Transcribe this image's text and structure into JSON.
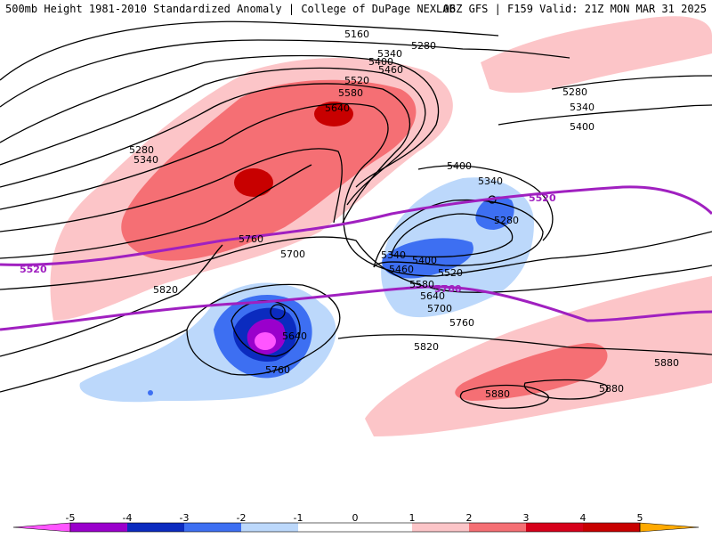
{
  "header": {
    "left_title": "500mb Height 1981-2010 Standardized Anomaly | College of DuPage NEXLAB",
    "right_title": "06Z GFS | F159 Valid: 21Z MON MAR 31 2025"
  },
  "colors": {
    "neg5": "#ff55ff",
    "neg4": "#9a00cc",
    "neg3": "#0b2bbf",
    "neg2": "#3d6ff2",
    "neg1": "#bcd8fb",
    "pos1": "#fcc5c8",
    "pos2": "#f56f74",
    "pos3": "#d6001a",
    "pos4": "#c80000",
    "pos5": "#ffaa00",
    "thick_line": "#a020c0"
  },
  "contours": {
    "c5160": "5160",
    "c5280": "5280",
    "c5340": "5340",
    "c5400": "5400",
    "c5460": "5460",
    "c5520": "5520",
    "c5580": "5580",
    "c5640": "5640",
    "c5700": "5700",
    "c5760": "5760",
    "c5820": "5820",
    "c5880": "5880"
  },
  "colorbar": {
    "ticks": [
      "-5",
      "-4",
      "-3",
      "-2",
      "-1",
      "0",
      "1",
      "2",
      "3",
      "4",
      "5"
    ]
  }
}
